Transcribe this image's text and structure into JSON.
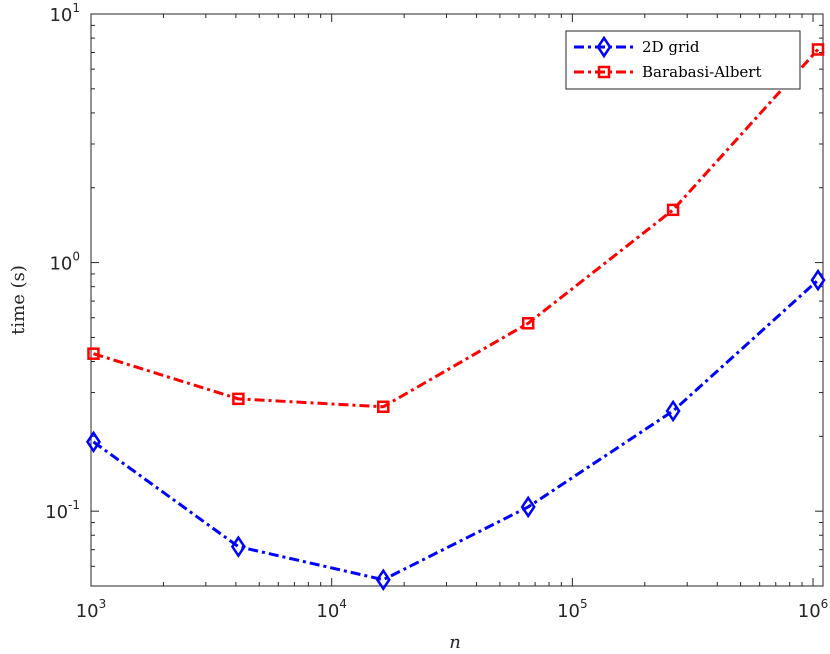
{
  "chart_data": {
    "type": "line",
    "xscale": "log",
    "yscale": "log",
    "xlabel": "n",
    "ylabel": "time (s)",
    "xlim": [
      1000,
      1100000
    ],
    "ylim": [
      0.05,
      10
    ],
    "x": [
      1024,
      4096,
      16384,
      65536,
      262144,
      1048576
    ],
    "x_ticks": [
      {
        "base": "10",
        "exp": "3",
        "value": 1000
      },
      {
        "base": "10",
        "exp": "4",
        "value": 10000
      },
      {
        "base": "10",
        "exp": "5",
        "value": 100000
      },
      {
        "base": "10",
        "exp": "6",
        "value": 1000000
      }
    ],
    "y_ticks": [
      {
        "base": "10",
        "exp": "-1",
        "value": 0.1
      },
      {
        "base": "10",
        "exp": "0",
        "value": 1
      },
      {
        "base": "10",
        "exp": "1",
        "value": 10
      }
    ],
    "series": [
      {
        "name": "2D grid",
        "color": "#0000ff",
        "marker": "diamond",
        "linestyle": "dash-dot",
        "values": [
          0.19,
          0.072,
          0.053,
          0.104,
          0.253,
          0.85
        ]
      },
      {
        "name": "Barabasi-Albert",
        "color": "#ff0000",
        "marker": "square",
        "linestyle": "dash-dot",
        "values": [
          0.43,
          0.283,
          0.263,
          0.57,
          1.63,
          7.2
        ]
      }
    ],
    "legend": "top-right",
    "grid": false
  }
}
